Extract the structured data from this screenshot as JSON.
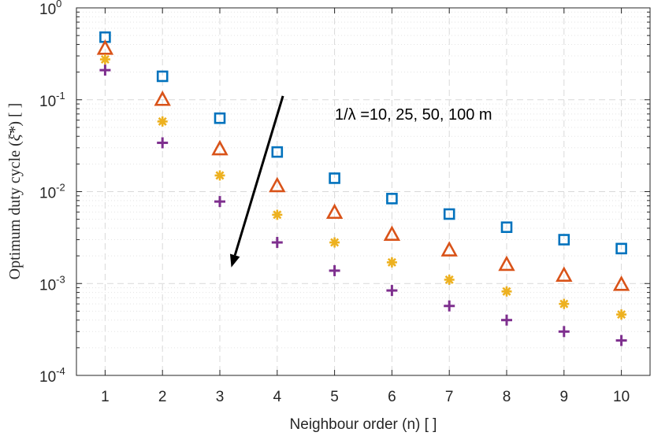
{
  "chart_data": {
    "type": "scatter",
    "xlabel": "Neighbour order (n) [ ]",
    "ylabel": "Optimum duty cycle (ξ̄*) [ ]",
    "ylabel_parts": {
      "prefix": "Optimum duty cycle (",
      "symbol": "ξ̄*",
      "suffix": ") [ ]"
    },
    "x": [
      1,
      2,
      3,
      4,
      5,
      6,
      7,
      8,
      9,
      10
    ],
    "xlim": [
      0.5,
      10.5
    ],
    "yscale": "log",
    "ylim": [
      0.0001,
      1
    ],
    "grid": true,
    "yticks": [
      {
        "base": "10",
        "exp": "0"
      },
      {
        "base": "10",
        "exp": "-1"
      },
      {
        "base": "10",
        "exp": "-2"
      },
      {
        "base": "10",
        "exp": "-3"
      },
      {
        "base": "10",
        "exp": "-4"
      }
    ],
    "series": [
      {
        "name": "1/λ = 10 m",
        "marker": "square",
        "color": "#0072BD",
        "values": [
          0.48,
          0.18,
          0.063,
          0.027,
          0.014,
          0.0084,
          0.0057,
          0.0041,
          0.003,
          0.0024
        ]
      },
      {
        "name": "1/λ = 25 m",
        "marker": "triangle",
        "color": "#D95319",
        "values": [
          0.36,
          0.1,
          0.029,
          0.0115,
          0.0059,
          0.0034,
          0.0023,
          0.0016,
          0.00122,
          0.00097
        ]
      },
      {
        "name": "1/λ = 50 m",
        "marker": "asterisk",
        "color": "#EDB120",
        "values": [
          0.275,
          0.058,
          0.015,
          0.0056,
          0.0028,
          0.0017,
          0.0011,
          0.00082,
          0.0006,
          0.00046
        ]
      },
      {
        "name": "1/λ = 100 m",
        "marker": "plus",
        "color": "#7E2F8E",
        "values": [
          0.21,
          0.034,
          0.0078,
          0.0028,
          0.00138,
          0.00084,
          0.00057,
          0.0004,
          0.0003,
          0.00024
        ]
      }
    ],
    "annotation": {
      "text": "1/λ =10, 25, 50, 100 m",
      "arrow_from": {
        "x": 4.1,
        "y": 0.11
      },
      "arrow_to": {
        "x": 3.2,
        "y": 0.0015
      }
    }
  }
}
